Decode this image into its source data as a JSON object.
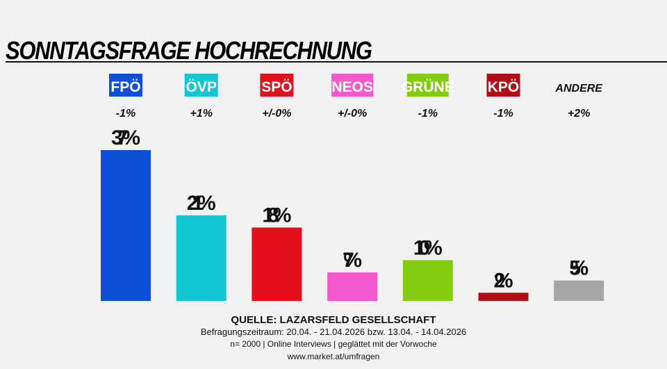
{
  "chart_data": {
    "type": "bar",
    "title": "SONNTAGSFRAGE HOCHRECHNUNG",
    "categories": [
      "FPÖ",
      "ÖVP",
      "SPÖ",
      "NEOS",
      "GRÜNE",
      "KPÖ",
      "ANDERE"
    ],
    "values": [
      37,
      21,
      18,
      7,
      10,
      2,
      5
    ],
    "data_labels": [
      "37%",
      "21%",
      "18%",
      "7%",
      "10%",
      "2%",
      "5%"
    ],
    "changes": [
      "-1%",
      "+1%",
      "+/-0%",
      "+/-0%",
      "-1%",
      "-1%",
      "+2%"
    ],
    "colors": [
      "#0d4fd6",
      "#13c6d4",
      "#e3101c",
      "#f659cf",
      "#83cc0e",
      "#b00d14",
      "#a6a6a6"
    ],
    "label_boxed": [
      true,
      true,
      true,
      true,
      true,
      true,
      false
    ],
    "ylim": [
      0,
      37
    ],
    "grid": false
  },
  "footer": {
    "source": "QUELLE: LAZARSFELD GESELLSCHAFT",
    "period": "Befragungszeitraum: 20.04. - 21.04.2026  bzw.  13.04. - 14.04.2026",
    "method": "n= 2000 | Online Interviews | geglättet mit der Vorwoche",
    "url": "www.market.at/umfragen"
  }
}
